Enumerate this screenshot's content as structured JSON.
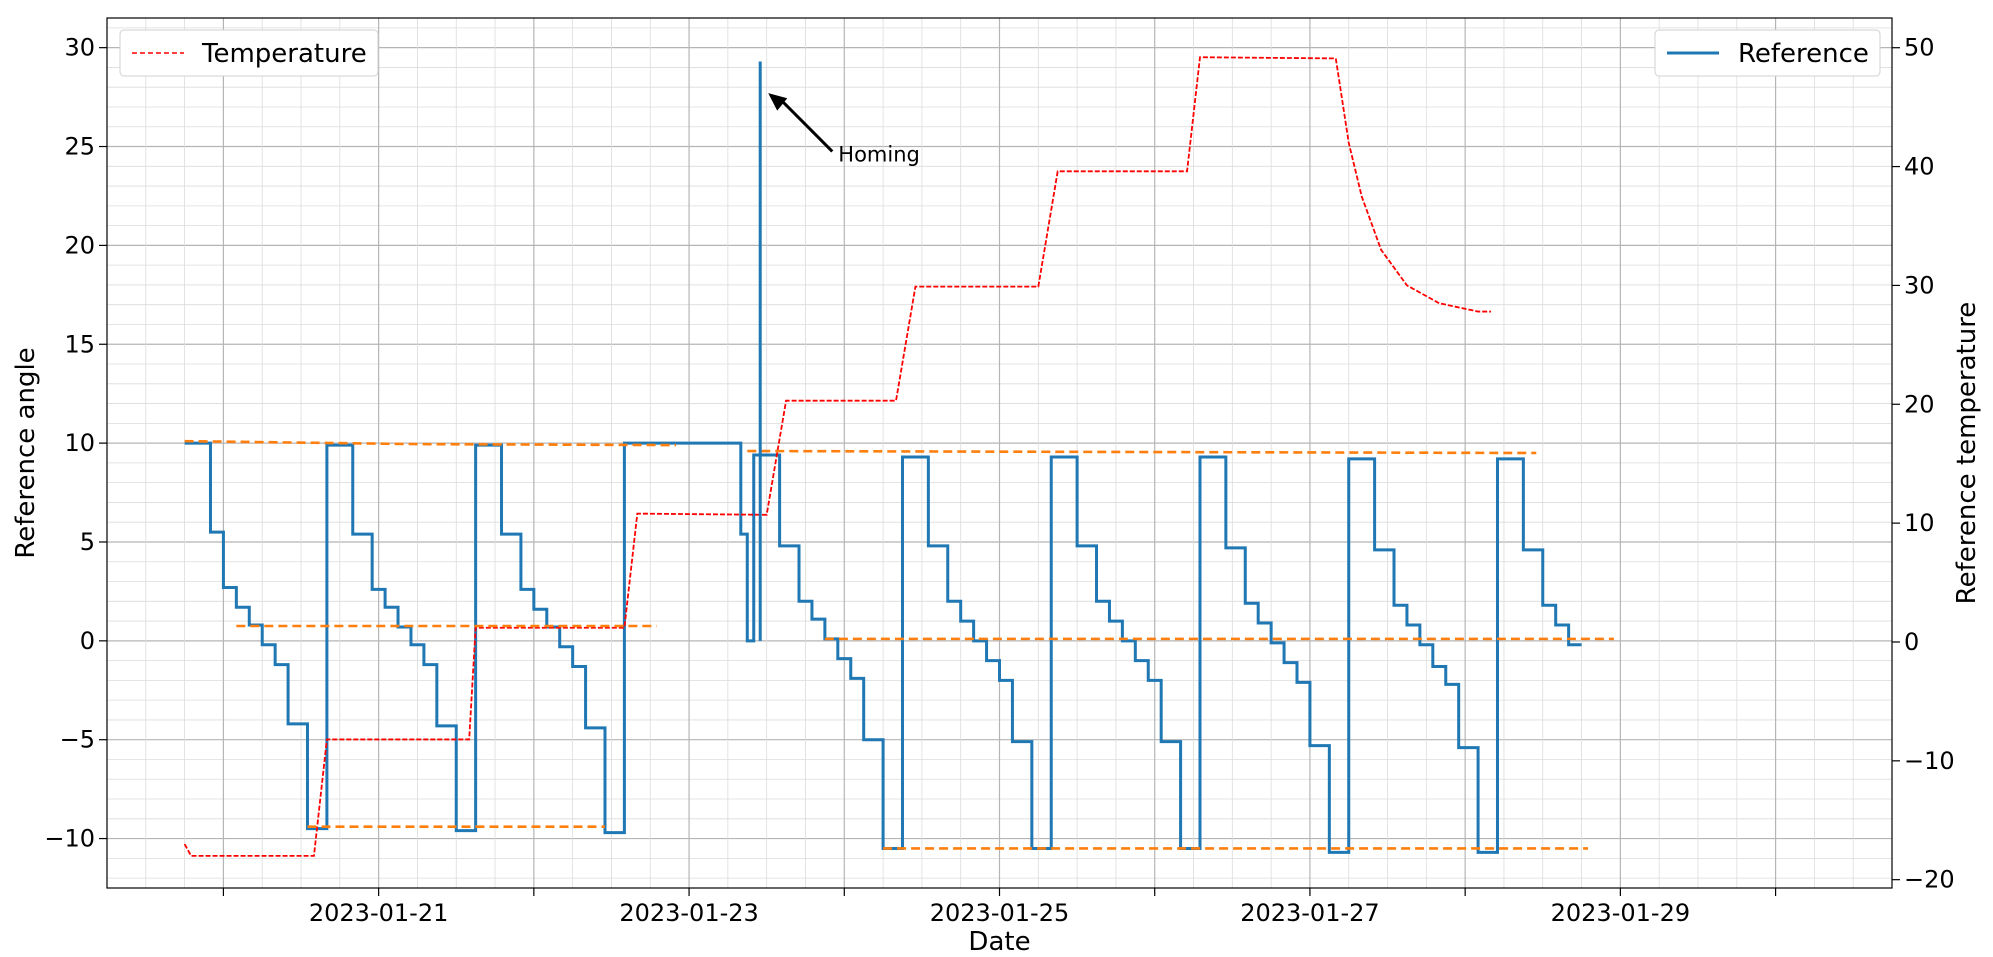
{
  "chart_data": {
    "type": "line",
    "title": "",
    "xlabel": "Date",
    "ylabel": "Reference angle",
    "y2label": "Reference temperature",
    "xlim": [
      "2023-01-19T06:00",
      "2023-01-30T18:00"
    ],
    "ylim": [
      -12.5,
      31.5
    ],
    "y2lim": [
      -20.7,
      52.5
    ],
    "x_ticks": [
      "2023-01-21",
      "2023-01-23",
      "2023-01-25",
      "2023-01-27",
      "2023-01-29"
    ],
    "y_ticks": [
      -10,
      -5,
      0,
      5,
      10,
      15,
      20,
      25,
      30
    ],
    "y2_ticks": [
      -20,
      -10,
      0,
      10,
      20,
      30,
      40,
      50
    ],
    "grid": true,
    "minor_grid": true,
    "legend_left": {
      "placement": "top-left",
      "label": "Temperature"
    },
    "legend_right": {
      "placement": "top-right",
      "label": "Reference"
    },
    "colors": {
      "reference": "#1f77b4",
      "temperature": "#ff0000",
      "dashed": "#ff7f0e"
    },
    "annotations": [
      {
        "text": "Homing",
        "x": "2023-01-24T00:00",
        "y": 24.6,
        "target_x": "2023-01-23T11:00",
        "target_y": 27.7
      }
    ],
    "series": [
      {
        "name": "Reference",
        "axis": "left",
        "style": "step",
        "points": [
          [
            "2023-01-19T18:00",
            10
          ],
          [
            "2023-01-19T22:00",
            5.5
          ],
          [
            "2023-01-20T00:00",
            2.7
          ],
          [
            "2023-01-20T02:00",
            1.7
          ],
          [
            "2023-01-20T04:00",
            0.8
          ],
          [
            "2023-01-20T06:00",
            -0.2
          ],
          [
            "2023-01-20T08:00",
            -1.2
          ],
          [
            "2023-01-20T10:00",
            -4.2
          ],
          [
            "2023-01-20T13:00",
            -9.5
          ],
          [
            "2023-01-20T16:00",
            9.9
          ],
          [
            "2023-01-20T20:00",
            5.4
          ],
          [
            "2023-01-20T23:00",
            2.6
          ],
          [
            "2023-01-21T01:00",
            1.7
          ],
          [
            "2023-01-21T03:00",
            0.7
          ],
          [
            "2023-01-21T05:00",
            -0.2
          ],
          [
            "2023-01-21T07:00",
            -1.2
          ],
          [
            "2023-01-21T09:00",
            -4.3
          ],
          [
            "2023-01-21T12:00",
            -9.6
          ],
          [
            "2023-01-21T15:00",
            9.9
          ],
          [
            "2023-01-21T19:00",
            5.4
          ],
          [
            "2023-01-21T22:00",
            2.6
          ],
          [
            "2023-01-22T00:00",
            1.6
          ],
          [
            "2023-01-22T02:00",
            0.7
          ],
          [
            "2023-01-22T04:00",
            -0.3
          ],
          [
            "2023-01-22T06:00",
            -1.3
          ],
          [
            "2023-01-22T08:00",
            -4.4
          ],
          [
            "2023-01-22T11:00",
            -9.7
          ],
          [
            "2023-01-22T14:00",
            10
          ],
          [
            "2023-01-23T08:00",
            5.4
          ],
          [
            "2023-01-23T09:00",
            0
          ],
          [
            "2023-01-23T10:00",
            9.4
          ],
          [
            "2023-01-23T14:00",
            4.8
          ],
          [
            "2023-01-23T17:00",
            2
          ],
          [
            "2023-01-23T19:00",
            1.1
          ],
          [
            "2023-01-23T21:00",
            0.1
          ],
          [
            "2023-01-23T23:00",
            -0.9
          ],
          [
            "2023-01-24T01:00",
            -1.9
          ],
          [
            "2023-01-24T03:00",
            -5
          ],
          [
            "2023-01-24T06:00",
            -10.5
          ],
          [
            "2023-01-24T09:00",
            9.3
          ],
          [
            "2023-01-24T13:00",
            4.8
          ],
          [
            "2023-01-24T16:00",
            2
          ],
          [
            "2023-01-24T18:00",
            1
          ],
          [
            "2023-01-24T20:00",
            0
          ],
          [
            "2023-01-24T22:00",
            -1
          ],
          [
            "2023-01-25T00:00",
            -2
          ],
          [
            "2023-01-25T02:00",
            -5.1
          ],
          [
            "2023-01-25T05:00",
            -10.5
          ],
          [
            "2023-01-25T08:00",
            9.3
          ],
          [
            "2023-01-25T12:00",
            4.8
          ],
          [
            "2023-01-25T15:00",
            2
          ],
          [
            "2023-01-25T17:00",
            1
          ],
          [
            "2023-01-25T19:00",
            0
          ],
          [
            "2023-01-25T21:00",
            -1
          ],
          [
            "2023-01-25T23:00",
            -2
          ],
          [
            "2023-01-26T01:00",
            -5.1
          ],
          [
            "2023-01-26T04:00",
            -10.5
          ],
          [
            "2023-01-26T07:00",
            9.3
          ],
          [
            "2023-01-26T11:00",
            4.7
          ],
          [
            "2023-01-26T14:00",
            1.9
          ],
          [
            "2023-01-26T16:00",
            0.9
          ],
          [
            "2023-01-26T18:00",
            -0.1
          ],
          [
            "2023-01-26T20:00",
            -1.1
          ],
          [
            "2023-01-26T22:00",
            -2.1
          ],
          [
            "2023-01-27T00:00",
            -5.3
          ],
          [
            "2023-01-27T03:00",
            -10.7
          ],
          [
            "2023-01-27T06:00",
            9.2
          ],
          [
            "2023-01-27T10:00",
            4.6
          ],
          [
            "2023-01-27T13:00",
            1.8
          ],
          [
            "2023-01-27T15:00",
            0.8
          ],
          [
            "2023-01-27T17:00",
            -0.2
          ],
          [
            "2023-01-27T19:00",
            -1.3
          ],
          [
            "2023-01-27T21:00",
            -2.2
          ],
          [
            "2023-01-27T23:00",
            -5.4
          ],
          [
            "2023-01-28T02:00",
            -10.7
          ],
          [
            "2023-01-28T05:00",
            9.2
          ],
          [
            "2023-01-28T09:00",
            4.6
          ],
          [
            "2023-01-28T12:00",
            1.8
          ],
          [
            "2023-01-28T14:00",
            0.8
          ],
          [
            "2023-01-28T16:00",
            -0.2
          ],
          [
            "2023-01-28T18:00",
            -0.2
          ]
        ]
      },
      {
        "name": "Temperature",
        "axis": "right",
        "style": "dashed",
        "points": [
          [
            "2023-01-19T18:00",
            -17
          ],
          [
            "2023-01-19T19:00",
            -18
          ],
          [
            "2023-01-20T14:00",
            -18
          ],
          [
            "2023-01-20T16:00",
            -8.2
          ],
          [
            "2023-01-21T14:00",
            -8.2
          ],
          [
            "2023-01-21T15:00",
            1.2
          ],
          [
            "2023-01-22T14:00",
            1.2
          ],
          [
            "2023-01-22T16:00",
            10.8
          ],
          [
            "2023-01-23T12:00",
            10.7
          ],
          [
            "2023-01-23T15:00",
            20.3
          ],
          [
            "2023-01-24T08:00",
            20.3
          ],
          [
            "2023-01-24T11:00",
            29.9
          ],
          [
            "2023-01-25T06:00",
            29.9
          ],
          [
            "2023-01-25T09:00",
            39.6
          ],
          [
            "2023-01-26T05:00",
            39.6
          ],
          [
            "2023-01-26T07:00",
            49.2
          ],
          [
            "2023-01-27T04:00",
            49.1
          ],
          [
            "2023-01-27T06:00",
            42
          ],
          [
            "2023-01-27T08:00",
            37.5
          ],
          [
            "2023-01-27T11:00",
            33
          ],
          [
            "2023-01-27T15:00",
            30
          ],
          [
            "2023-01-27T20:00",
            28.5
          ],
          [
            "2023-01-28T02:00",
            27.8
          ],
          [
            "2023-01-28T04:00",
            27.8
          ]
        ]
      },
      {
        "name": "",
        "axis": "left",
        "style": "dashed-orange",
        "points": [
          [
            "2023-01-19T18:00",
            10.1
          ],
          [
            "2023-01-21T06:00",
            9.95
          ],
          [
            "2023-01-22T22:00",
            9.9
          ]
        ]
      },
      {
        "name": "",
        "axis": "left",
        "style": "dashed-orange",
        "points": [
          [
            "2023-01-23T09:00",
            9.6
          ],
          [
            "2023-01-28T11:00",
            9.5
          ]
        ]
      },
      {
        "name": "",
        "axis": "left",
        "style": "dashed-orange",
        "points": [
          [
            "2023-01-20T02:00",
            0.75
          ],
          [
            "2023-01-22T19:00",
            0.75
          ]
        ]
      },
      {
        "name": "",
        "axis": "left",
        "style": "dashed-orange",
        "points": [
          [
            "2023-01-23T21:00",
            0.1
          ],
          [
            "2023-01-28T23:00",
            0.1
          ]
        ]
      },
      {
        "name": "",
        "axis": "left",
        "style": "dashed-orange",
        "points": [
          [
            "2023-01-20T13:00",
            -9.4
          ],
          [
            "2023-01-22T11:00",
            -9.4
          ]
        ]
      },
      {
        "name": "",
        "axis": "left",
        "style": "dashed-orange",
        "points": [
          [
            "2023-01-24T06:00",
            -10.5
          ],
          [
            "2023-01-28T19:00",
            -10.5
          ]
        ]
      },
      {
        "name": "",
        "axis": "left",
        "style": "spike",
        "points": [
          [
            "2023-01-23T11:00",
            0
          ],
          [
            "2023-01-23T11:00",
            29.3
          ]
        ]
      }
    ]
  }
}
